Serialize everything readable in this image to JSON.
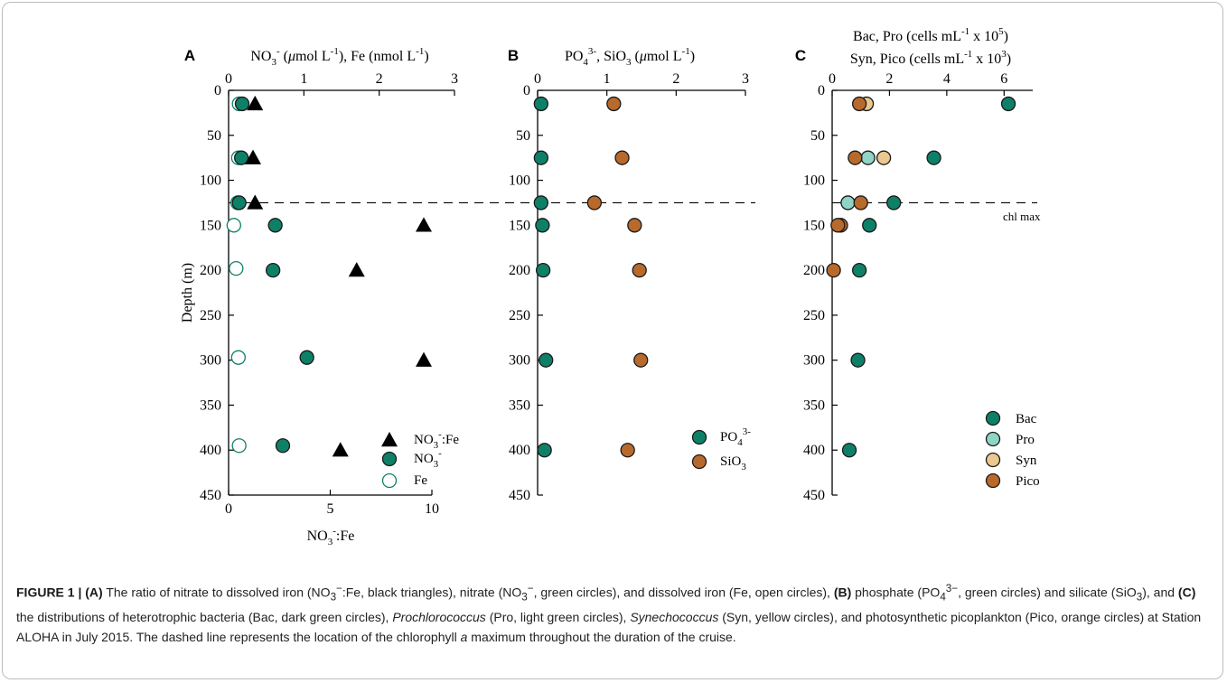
{
  "colors": {
    "bac": "#0f8068",
    "pro": "#8fd4c4",
    "syn": "#eac88e",
    "pico": "#b86a2c",
    "nitrate": "#0f8068",
    "fe_open": "#0f8068",
    "ratio": "#000000",
    "phosphate": "#0f8068",
    "silicate": "#b86a2c"
  },
  "chart_data": [
    {
      "panel": "A",
      "type": "scatter",
      "top_axis_label": "NO3- (μmol L-1), Fe (nmol L-1)",
      "top_axis_label_parts": [
        "NO",
        "3",
        "-",
        " (",
        "μ",
        "mol L",
        "-1",
        "), Fe (nmol L",
        "-1",
        ")"
      ],
      "bottom_axis_label_parts": [
        "NO",
        "3",
        "-",
        ":Fe"
      ],
      "ylabel": "Depth (m)",
      "top_xlim": [
        0,
        3
      ],
      "top_ticks": [
        "0",
        "1",
        "2",
        "3"
      ],
      "bottom_xlim": [
        0,
        10
      ],
      "bottom_ticks": [
        "0",
        "5",
        "10"
      ],
      "ylim": [
        0,
        450
      ],
      "y_ticks": [
        "0",
        "50",
        "100",
        "150",
        "200",
        "250",
        "300",
        "350",
        "400",
        "450"
      ],
      "y_inverted": true,
      "chl_max_depth": 125,
      "legend": {
        "placement": "bottom-right"
      },
      "series": [
        {
          "name": "NO3-:Fe",
          "legend_parts": [
            "NO",
            "3",
            "-",
            ":Fe"
          ],
          "marker": "triangle",
          "axis": "bottom",
          "points": [
            [
              1.3,
              15
            ],
            [
              1.2,
              75
            ],
            [
              1.3,
              125
            ],
            [
              9.6,
              150
            ],
            [
              6.3,
              200
            ],
            [
              9.6,
              300
            ],
            [
              5.5,
              400
            ]
          ]
        },
        {
          "name": "NO3-",
          "legend_parts": [
            "NO",
            "3",
            "-"
          ],
          "marker": "filled",
          "axis": "top",
          "points": [
            [
              0.18,
              15
            ],
            [
              0.17,
              75
            ],
            [
              0.14,
              125
            ],
            [
              0.62,
              150
            ],
            [
              0.59,
              200
            ],
            [
              1.04,
              297
            ],
            [
              0.72,
              395
            ]
          ]
        },
        {
          "name": "Fe",
          "legend_parts": [
            "Fe"
          ],
          "marker": "open",
          "axis": "top",
          "points": [
            [
              0.14,
              15
            ],
            [
              0.13,
              75
            ],
            [
              0.12,
              125
            ],
            [
              0.07,
              150
            ],
            [
              0.1,
              198
            ],
            [
              0.13,
              297
            ],
            [
              0.14,
              395
            ]
          ]
        }
      ]
    },
    {
      "panel": "B",
      "type": "scatter",
      "top_axis_label": "PO43-, SiO3 (μmol L-1)",
      "top_axis_label_parts": [
        "PO",
        "4",
        "3-",
        ", SiO",
        "3",
        " (",
        "μ",
        "mol L",
        "-1",
        ")"
      ],
      "top_xlim": [
        0,
        3
      ],
      "top_ticks": [
        "0",
        "1",
        "2",
        "3"
      ],
      "ylim": [
        0,
        450
      ],
      "y_ticks": [
        "0",
        "50",
        "100",
        "150",
        "200",
        "250",
        "300",
        "350",
        "400",
        "450"
      ],
      "y_inverted": true,
      "chl_max_depth": 125,
      "legend": {
        "placement": "bottom-right"
      },
      "series": [
        {
          "name": "PO43-",
          "legend_parts": [
            "PO",
            "4",
            "3-"
          ],
          "marker": "filled",
          "color": "phosphate",
          "points": [
            [
              0.05,
              15
            ],
            [
              0.05,
              75
            ],
            [
              0.05,
              125
            ],
            [
              0.07,
              150
            ],
            [
              0.08,
              200
            ],
            [
              0.12,
              300
            ],
            [
              0.1,
              400
            ]
          ]
        },
        {
          "name": "SiO3",
          "legend_parts": [
            "SiO",
            "3"
          ],
          "marker": "filled",
          "color": "silicate",
          "points": [
            [
              1.1,
              15
            ],
            [
              1.22,
              75
            ],
            [
              0.82,
              125
            ],
            [
              1.4,
              150
            ],
            [
              1.47,
              200
            ],
            [
              1.49,
              300
            ],
            [
              1.3,
              400
            ]
          ]
        }
      ]
    },
    {
      "panel": "C",
      "type": "scatter",
      "top_axis_label_line1_parts": [
        "Bac, Pro (cells mL",
        "-1",
        " x 10",
        "5",
        ")"
      ],
      "top_axis_label_line2_parts": [
        "Syn, Pico (cells mL",
        "-1",
        " x 10",
        "3",
        ")"
      ],
      "top_xlim": [
        0,
        7
      ],
      "top_ticks": [
        "0",
        "2",
        "4",
        "6"
      ],
      "ylim": [
        0,
        450
      ],
      "y_ticks": [
        "0",
        "50",
        "100",
        "150",
        "200",
        "250",
        "300",
        "350",
        "400",
        "450"
      ],
      "y_inverted": true,
      "chl_max_depth": 125,
      "chl_max_label": "chl max",
      "legend": {
        "placement": "bottom-right"
      },
      "series": [
        {
          "name": "Bac",
          "marker": "filled",
          "color": "bac",
          "points": [
            [
              6.15,
              15
            ],
            [
              3.55,
              75
            ],
            [
              2.15,
              125
            ],
            [
              1.3,
              150
            ],
            [
              0.95,
              200
            ],
            [
              0.9,
              300
            ],
            [
              0.6,
              400
            ]
          ]
        },
        {
          "name": "Pro",
          "marker": "filled",
          "color": "pro",
          "points": [
            [
              1.25,
              75
            ],
            [
              0.55,
              125
            ]
          ]
        },
        {
          "name": "Syn",
          "marker": "filled",
          "color": "syn",
          "points": [
            [
              1.2,
              15
            ],
            [
              1.8,
              75
            ]
          ]
        },
        {
          "name": "Pico",
          "marker": "filled",
          "color": "pico",
          "points": [
            [
              0.95,
              15
            ],
            [
              0.8,
              75
            ],
            [
              1.0,
              125
            ],
            [
              0.3,
              150
            ],
            [
              0.2,
              150
            ],
            [
              0.05,
              200
            ]
          ]
        }
      ]
    }
  ],
  "caption": {
    "figure_label": "FIGURE 1 | ",
    "part_a": "(A)",
    "text_a1": " The ratio of nitrate to dissolved iron (NO",
    "text_a1_sub": "3",
    "text_a1_sup": "−",
    "text_a2": ":Fe, black triangles), nitrate (NO",
    "text_a2_sub": "3",
    "text_a2_sup": "−",
    "text_a3": ", green circles), and dissolved iron (Fe, open circles), ",
    "part_b": "(B)",
    "text_b1": " phosphate (PO",
    "text_b1_sub": "4",
    "text_b1_sup": "3−",
    "text_b2": ", green circles) and silicate (SiO",
    "text_b2_sub": "3",
    "text_b3": "), and ",
    "part_c": "(C)",
    "text_c1": " the distributions of heterotrophic bacteria (Bac, dark green circles), ",
    "italic_pro": "Prochlorococcus",
    "text_c2": " (Pro, light green circles), ",
    "italic_syn": "Synechococcus",
    "text_c3": " (Syn, yellow circles), and photosynthetic picoplankton (Pico, orange circles) at Station ALOHA in July 2015. The dashed line represents the location of the chlorophyll ",
    "italic_a": "a",
    "text_c4": " maximum throughout the duration of the cruise."
  }
}
